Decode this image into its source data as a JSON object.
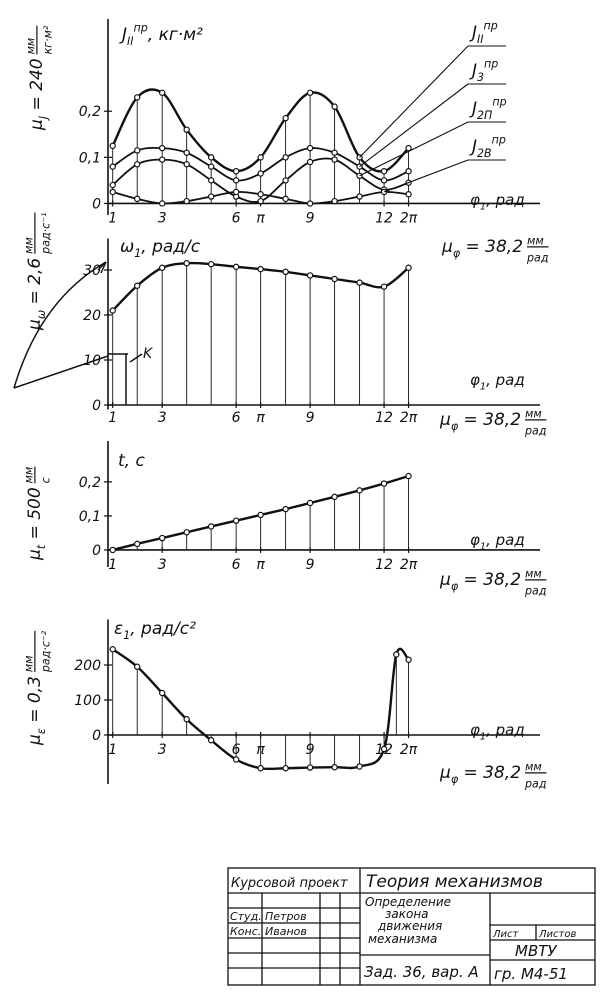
{
  "chart_data": [
    {
      "type": "line",
      "y_label": {
        "main": "J",
        "sub": "II",
        "sup": "пр",
        "rest": ", кг·м²"
      },
      "x_label": {
        "main": "φ",
        "sub": "1",
        "rest": ", рад"
      },
      "y_scale": {
        "main": "μ",
        "sub": "J",
        "rest": " = 240",
        "num": "мм",
        "den": "кг·м²"
      },
      "x_scale": {
        "main": "μ",
        "sub": "φ",
        "rest": " = 38,2",
        "num": "мм",
        "den": "рад"
      },
      "x": [
        0,
        0.52,
        1.05,
        1.57,
        2.09,
        2.62,
        3.14,
        3.67,
        4.19,
        4.71,
        5.24,
        5.76,
        6.28
      ],
      "series": [
        {
          "name": {
            "main": "J",
            "sub": "II",
            "sup": "пр"
          },
          "color": "#111111",
          "values": [
            0.125,
            0.23,
            0.24,
            0.16,
            0.1,
            0.07,
            0.1,
            0.185,
            0.24,
            0.21,
            0.1,
            0.07,
            0.12
          ]
        },
        {
          "name": {
            "main": "J",
            "sub": "3",
            "sup": "пр"
          },
          "color": "#111111",
          "values": [
            0.08,
            0.115,
            0.12,
            0.11,
            0.08,
            0.05,
            0.065,
            0.1,
            0.12,
            0.11,
            0.08,
            0.05,
            0.07
          ]
        },
        {
          "name": {
            "main": "J",
            "sub": "2П",
            "sup": "пр"
          },
          "color": "#111111",
          "values": [
            0.04,
            0.085,
            0.095,
            0.085,
            0.05,
            0.015,
            0.005,
            0.05,
            0.09,
            0.095,
            0.06,
            0.03,
            0.045
          ]
        },
        {
          "name": {
            "main": "J",
            "sub": "2В",
            "sup": "пр"
          },
          "color": "#111111",
          "values": [
            0.025,
            0.01,
            0,
            0.005,
            0.015,
            0.025,
            0.02,
            0.01,
            0,
            0.005,
            0.015,
            0.025,
            0.02
          ]
        }
      ],
      "xlim": [
        -0.1,
        9.07
      ],
      "xticks": [
        {
          "value": 0,
          "label": "1"
        },
        {
          "value": 1.05,
          "label": "3"
        },
        {
          "value": 2.62,
          "label": "6"
        },
        {
          "value": 3.14,
          "label": "π"
        },
        {
          "value": 4.19,
          "label": "9"
        },
        {
          "value": 5.76,
          "label": "12"
        },
        {
          "value": 6.28,
          "label": "2π"
        }
      ],
      "ylim": [
        -0.025,
        0.4
      ],
      "yticks": [
        0,
        {
          "value": 0.1,
          "label": "0,1"
        },
        {
          "value": 0.2,
          "label": "0,2"
        }
      ]
    },
    {
      "type": "line",
      "y_label": {
        "main": "ω",
        "sub": "1",
        "rest": ", рад/с"
      },
      "x_label": {
        "main": "φ",
        "sub": "1",
        "rest": ", рад"
      },
      "y_scale": {
        "main": "μ",
        "sub": "ω",
        "rest": " = 2,6",
        "num": "мм",
        "den": "рад·с⁻¹"
      },
      "x_scale": {
        "main": "μ",
        "sub": "φ",
        "rest": " = 38,2",
        "num": "мм",
        "den": "рад"
      },
      "annotation": "K",
      "x": [
        0,
        0.52,
        1.05,
        1.57,
        2.09,
        2.62,
        3.14,
        3.67,
        4.19,
        4.71,
        5.24,
        5.76,
        6.28
      ],
      "values": [
        21,
        26.5,
        30.5,
        31.5,
        31.3,
        30.7,
        30.2,
        29.6,
        28.8,
        28,
        27.2,
        26.3,
        30.5
      ],
      "color": "#111111",
      "xlim": [
        -0.1,
        9.07
      ],
      "xticks": [
        {
          "value": 0,
          "label": "1"
        },
        {
          "value": 1.05,
          "label": "3"
        },
        {
          "value": 2.62,
          "label": "6"
        },
        {
          "value": 3.14,
          "label": "π"
        },
        {
          "value": 4.19,
          "label": "9"
        },
        {
          "value": 5.76,
          "label": "12"
        },
        {
          "value": 6.28,
          "label": "2π"
        }
      ],
      "ylim": [
        -1,
        37
      ],
      "yticks": [
        0,
        10,
        20,
        30
      ]
    },
    {
      "type": "line",
      "y_label": {
        "main": "t",
        "rest": ", c"
      },
      "x_label": {
        "main": "φ",
        "sub": "1",
        "rest": ", рад"
      },
      "y_scale": {
        "main": "μ",
        "sub": "t",
        "rest": " = 500",
        "num": "мм",
        "den": "с"
      },
      "x_scale": {
        "main": "μ",
        "sub": "φ",
        "rest": " = 38,2",
        "num": "мм",
        "den": "рад"
      },
      "x": [
        0,
        0.52,
        1.05,
        1.57,
        2.09,
        2.62,
        3.14,
        3.67,
        4.19,
        4.71,
        5.24,
        5.76,
        6.28
      ],
      "values": [
        0,
        0.018,
        0.035,
        0.052,
        0.069,
        0.086,
        0.103,
        0.12,
        0.138,
        0.156,
        0.175,
        0.195,
        0.217
      ],
      "color": "#111111",
      "xlim": [
        -0.1,
        9.07
      ],
      "xticks": [
        {
          "value": 0,
          "label": "1"
        },
        {
          "value": 1.05,
          "label": "3"
        },
        {
          "value": 2.62,
          "label": "6"
        },
        {
          "value": 3.14,
          "label": "π"
        },
        {
          "value": 4.19,
          "label": "9"
        },
        {
          "value": 5.76,
          "label": "12"
        },
        {
          "value": 6.28,
          "label": "2π"
        }
      ],
      "ylim": [
        -0.05,
        0.32
      ],
      "yticks": [
        0,
        {
          "value": 0.1,
          "label": "0,1"
        },
        {
          "value": 0.2,
          "label": "0,2"
        }
      ]
    },
    {
      "type": "line",
      "y_label": {
        "main": "ε",
        "sub": "1",
        "rest": ", рад/с²"
      },
      "x_label": {
        "main": "φ",
        "sub": "1",
        "rest": ", рад"
      },
      "y_scale": {
        "main": "μ",
        "sub": "ε",
        "rest": " = 0,3",
        "num": "мм",
        "den": "рад·с⁻²"
      },
      "x_scale": {
        "main": "μ",
        "sub": "φ",
        "rest": " = 38,2",
        "num": "мм",
        "den": "рад"
      },
      "x": [
        0,
        0.52,
        1.05,
        1.57,
        2.09,
        2.62,
        3.14,
        3.67,
        4.19,
        4.71,
        5.24,
        5.76,
        6.02,
        6.28
      ],
      "values": [
        245,
        195,
        120,
        45,
        -15,
        -70,
        -95,
        -95,
        -93,
        -92,
        -90,
        -40,
        230,
        215
      ],
      "color": "#111111",
      "xlim": [
        -0.1,
        9.07
      ],
      "xticks": [
        {
          "value": 0,
          "label": "1"
        },
        {
          "value": 1.05,
          "label": "3"
        },
        {
          "value": 2.62,
          "label": "6"
        },
        {
          "value": 3.14,
          "label": "π"
        },
        {
          "value": 4.19,
          "label": "9"
        },
        {
          "value": 5.76,
          "label": "12"
        },
        {
          "value": 6.28,
          "label": "2π"
        }
      ],
      "ylim": [
        -140,
        330
      ],
      "yticks": [
        0,
        100,
        200
      ]
    }
  ],
  "title_block": {
    "course": "Курсовой проект",
    "subject": "Теория механизмов",
    "roles": [
      {
        "role": "Студ.",
        "name": "Петров"
      },
      {
        "role": "Конс.",
        "name": "Иванов"
      }
    ],
    "topic": [
      "Определение",
      "закона",
      "движения",
      "механизма"
    ],
    "task": "Зад. 36, вар. А",
    "sheet": "Лист",
    "sheets": "Листов",
    "org": "МВТУ",
    "group": "гр. М4-51"
  }
}
